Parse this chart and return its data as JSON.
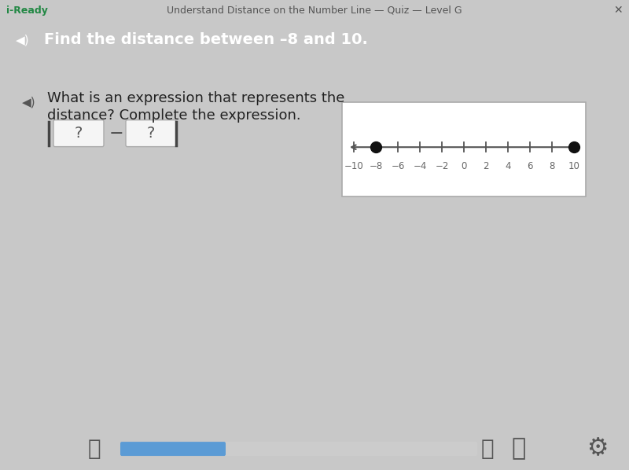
{
  "title_bar_text": "Find the distance between –8 and 10.",
  "title_bar_color": "#2e8b8e",
  "title_bar_text_color": "#ffffff",
  "header_text": "Understand Distance on the Number Line — Quiz — Level G",
  "header_bg": "#f0f0f0",
  "header_text_color": "#555555",
  "app_name": "i-Ready",
  "body_bg": "#c8c8c8",
  "question_text_line1": "What is an expression that represents the",
  "question_text_line2": "distance? Complete the expression.",
  "question_text_color": "#222222",
  "number_line_box_bg": "#ffffff",
  "number_line_box_border": "#aaaaaa",
  "number_line_min": -11,
  "number_line_max": 11,
  "number_line_ticks": [
    -10,
    -8,
    -6,
    -4,
    -2,
    0,
    2,
    4,
    6,
    8,
    10
  ],
  "point1": -8,
  "point2": 10,
  "point_color": "#111111",
  "abs_bar_color": "#444444",
  "box_color": "#f5f5f5",
  "box_border": "#aaaaaa",
  "minus_color": "#444444",
  "question_mark_color": "#555555",
  "bottom_bar_bg": "#e8e8e8",
  "progress_bar_fill": "#5b9bd5",
  "progress_bar_bg": "#cccccc",
  "footer_icon_color": "#555555"
}
